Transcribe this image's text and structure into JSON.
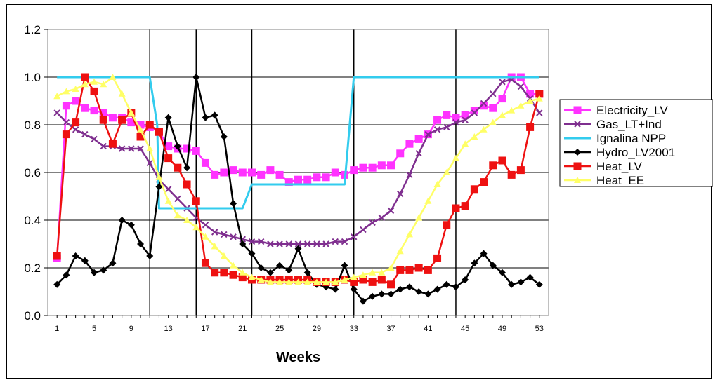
{
  "chart_data": {
    "type": "line",
    "xlabel": "Weeks",
    "ylabel": "",
    "xlim": [
      1,
      53
    ],
    "ylim": [
      0.0,
      1.2
    ],
    "y_ticks": [
      "0.0",
      "0.2",
      "0.4",
      "0.6",
      "0.8",
      "1.0",
      "1.2"
    ],
    "x_tick_labels": [
      "1",
      "5",
      "9",
      "13",
      "17",
      "21",
      "25",
      "29",
      "33",
      "37",
      "41",
      "45",
      "49",
      "53"
    ],
    "x_tick_values": [
      1,
      5,
      9,
      13,
      17,
      21,
      25,
      29,
      33,
      37,
      41,
      45,
      49,
      53
    ],
    "vertical_lines": [
      11,
      16,
      22,
      33,
      44
    ],
    "grid": "horizontal",
    "legend_position": "right",
    "series": [
      {
        "name": "Electricity_LV",
        "color": "#ff33ff",
        "marker": "square",
        "x": [
          1,
          2,
          3,
          4,
          5,
          6,
          7,
          8,
          9,
          10,
          11,
          12,
          13,
          14,
          15,
          16,
          17,
          18,
          19,
          20,
          21,
          22,
          23,
          24,
          25,
          26,
          27,
          28,
          29,
          30,
          31,
          32,
          33,
          34,
          35,
          36,
          37,
          38,
          39,
          40,
          41,
          42,
          43,
          44,
          45,
          46,
          47,
          48,
          49,
          50,
          51,
          52,
          53
        ],
        "y": [
          0.24,
          0.88,
          0.9,
          0.87,
          0.86,
          0.85,
          0.83,
          0.83,
          0.81,
          0.8,
          0.79,
          0.77,
          0.71,
          0.7,
          0.7,
          0.69,
          0.64,
          0.59,
          0.6,
          0.61,
          0.6,
          0.6,
          0.59,
          0.61,
          0.59,
          0.56,
          0.57,
          0.57,
          0.58,
          0.58,
          0.6,
          0.59,
          0.61,
          0.62,
          0.62,
          0.63,
          0.63,
          0.68,
          0.72,
          0.74,
          0.76,
          0.82,
          0.84,
          0.83,
          0.84,
          0.86,
          0.88,
          0.87,
          0.91,
          1.0,
          1.0,
          0.93,
          0.93
        ]
      },
      {
        "name": "Gas_LT+Ind",
        "color": "#7f2f8f",
        "marker": "x",
        "x": [
          1,
          2,
          3,
          4,
          5,
          6,
          7,
          8,
          9,
          10,
          11,
          12,
          13,
          14,
          15,
          16,
          17,
          18,
          19,
          20,
          21,
          22,
          23,
          24,
          25,
          26,
          27,
          28,
          29,
          30,
          31,
          32,
          33,
          34,
          35,
          36,
          37,
          38,
          39,
          40,
          41,
          42,
          43,
          44,
          45,
          46,
          47,
          48,
          49,
          50,
          51,
          52,
          53
        ],
        "y": [
          0.85,
          0.81,
          0.78,
          0.76,
          0.74,
          0.71,
          0.71,
          0.7,
          0.7,
          0.7,
          0.64,
          0.57,
          0.53,
          0.49,
          0.45,
          0.41,
          0.38,
          0.35,
          0.34,
          0.33,
          0.32,
          0.31,
          0.31,
          0.3,
          0.3,
          0.3,
          0.3,
          0.3,
          0.3,
          0.3,
          0.31,
          0.31,
          0.33,
          0.36,
          0.39,
          0.41,
          0.44,
          0.51,
          0.59,
          0.68,
          0.76,
          0.78,
          0.79,
          0.81,
          0.82,
          0.85,
          0.89,
          0.93,
          0.98,
          0.99,
          0.96,
          0.91,
          0.85
        ]
      },
      {
        "name": "Ignalina NPP",
        "color": "#33ccee",
        "marker": "none",
        "x": [
          1,
          11,
          11.8,
          12,
          21,
          22,
          32,
          33,
          53
        ],
        "y": [
          1.0,
          1.0,
          0.8,
          0.45,
          0.45,
          0.55,
          0.55,
          1.0,
          1.0
        ]
      },
      {
        "name": "Hydro_LV2001",
        "color": "#000000",
        "marker": "diamond",
        "x": [
          1,
          2,
          3,
          4,
          5,
          6,
          7,
          8,
          9,
          10,
          11,
          12,
          13,
          14,
          15,
          16,
          17,
          18,
          19,
          20,
          21,
          22,
          23,
          24,
          25,
          26,
          27,
          28,
          29,
          30,
          31,
          32,
          33,
          34,
          35,
          36,
          37,
          38,
          39,
          40,
          41,
          42,
          43,
          44,
          45,
          46,
          47,
          48,
          49,
          50,
          51,
          52,
          53
        ],
        "y": [
          0.13,
          0.17,
          0.25,
          0.23,
          0.18,
          0.19,
          0.22,
          0.4,
          0.38,
          0.3,
          0.25,
          0.54,
          0.83,
          0.71,
          0.62,
          1.0,
          0.83,
          0.84,
          0.75,
          0.47,
          0.3,
          0.26,
          0.2,
          0.18,
          0.21,
          0.19,
          0.28,
          0.18,
          0.13,
          0.12,
          0.11,
          0.21,
          0.11,
          0.06,
          0.08,
          0.09,
          0.09,
          0.11,
          0.12,
          0.1,
          0.09,
          0.11,
          0.13,
          0.12,
          0.15,
          0.22,
          0.26,
          0.21,
          0.18,
          0.13,
          0.14,
          0.16,
          0.13
        ]
      },
      {
        "name": "Heat_LV",
        "color": "#ee1111",
        "marker": "square",
        "x": [
          1,
          2,
          3,
          4,
          5,
          6,
          7,
          8,
          9,
          10,
          11,
          12,
          13,
          14,
          15,
          16,
          17,
          18,
          19,
          20,
          21,
          22,
          23,
          24,
          25,
          26,
          27,
          28,
          29,
          30,
          31,
          32,
          33,
          34,
          35,
          36,
          37,
          38,
          39,
          40,
          41,
          42,
          43,
          44,
          45,
          46,
          47,
          48,
          49,
          50,
          51,
          52,
          53
        ],
        "y": [
          0.25,
          0.76,
          0.81,
          1.0,
          0.94,
          0.82,
          0.72,
          0.82,
          0.85,
          0.75,
          0.8,
          0.77,
          0.66,
          0.62,
          0.55,
          0.48,
          0.22,
          0.18,
          0.18,
          0.17,
          0.16,
          0.15,
          0.15,
          0.15,
          0.15,
          0.15,
          0.15,
          0.15,
          0.14,
          0.14,
          0.14,
          0.15,
          0.14,
          0.15,
          0.14,
          0.15,
          0.13,
          0.19,
          0.19,
          0.2,
          0.19,
          0.24,
          0.38,
          0.45,
          0.46,
          0.53,
          0.56,
          0.63,
          0.65,
          0.59,
          0.61,
          0.79,
          0.93
        ]
      },
      {
        "name": "Heat_EE",
        "color": "#ffff66",
        "marker": "triangle",
        "x": [
          1,
          2,
          3,
          4,
          5,
          6,
          7,
          8,
          9,
          10,
          11,
          12,
          13,
          14,
          15,
          16,
          17,
          18,
          19,
          20,
          21,
          22,
          23,
          24,
          25,
          26,
          27,
          28,
          29,
          30,
          31,
          32,
          33,
          34,
          35,
          36,
          37,
          38,
          39,
          40,
          41,
          42,
          43,
          44,
          45,
          46,
          47,
          48,
          49,
          50,
          51,
          52,
          53
        ],
        "y": [
          0.92,
          0.94,
          0.95,
          0.97,
          0.98,
          0.97,
          1.0,
          0.93,
          0.85,
          0.78,
          0.7,
          0.58,
          0.48,
          0.42,
          0.4,
          0.37,
          0.33,
          0.29,
          0.25,
          0.21,
          0.18,
          0.16,
          0.15,
          0.14,
          0.14,
          0.14,
          0.14,
          0.14,
          0.14,
          0.14,
          0.14,
          0.15,
          0.16,
          0.17,
          0.18,
          0.18,
          0.2,
          0.27,
          0.34,
          0.41,
          0.48,
          0.55,
          0.6,
          0.66,
          0.72,
          0.75,
          0.78,
          0.81,
          0.84,
          0.86,
          0.88,
          0.9,
          0.91
        ]
      }
    ]
  }
}
